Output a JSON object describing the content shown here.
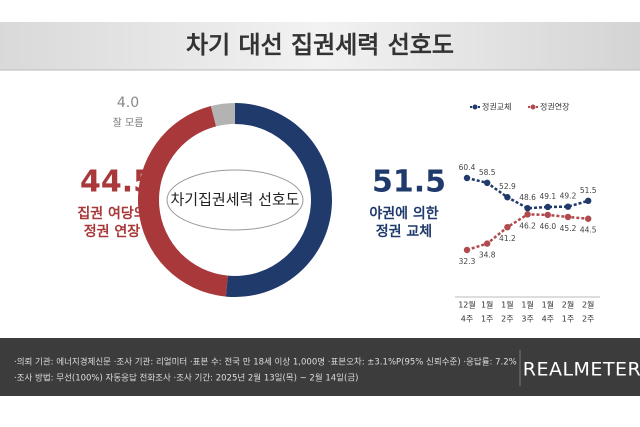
{
  "title": "차기 대선 집권세력 선호도",
  "chart_data": [
    {
      "type": "pie",
      "center_label": "차기집권세력 선호도",
      "labels": [
        [
          "야권에 의한",
          "정권 교체"
        ],
        [
          "집권 여당의",
          "정권 연장"
        ],
        [
          "잘 모름"
        ]
      ],
      "values": [
        51.5,
        44.5,
        4.0
      ],
      "value_labels": [
        "51.5",
        "44.5",
        "4.0"
      ],
      "colors": [
        "#1f3a6b",
        "#a8383a",
        "#b3b3b3"
      ]
    },
    {
      "type": "line",
      "categories": [
        [
          "12월",
          "4주"
        ],
        [
          "1월",
          "1주"
        ],
        [
          "1월",
          "2주"
        ],
        [
          "1월",
          "3주"
        ],
        [
          "1월",
          "4주"
        ],
        [
          "2월",
          "1주"
        ],
        [
          "2월",
          "2주"
        ]
      ],
      "series": [
        {
          "name": "정권교체",
          "color": "#1f3a6b",
          "values": [
            60.4,
            58.5,
            52.9,
            48.6,
            49.1,
            49.2,
            51.5
          ]
        },
        {
          "name": "정권연장",
          "color": "#b04a4e",
          "values": [
            32.3,
            34.8,
            41.2,
            46.2,
            46.0,
            45.2,
            44.5
          ],
          "value_labels": [
            "32.3",
            "34.8",
            "41.2",
            "46.2",
            "46.0",
            "45.2",
            "44.5"
          ]
        }
      ]
    }
  ],
  "footer": {
    "lines": [
      "·의뢰 기관: 에너지경제신문 ·조사 기관: 리얼미터 ·표본 수: 전국 만 18세 이상 1,000명 ·표본오차: ±3.1%P(95% 신뢰수준) ·응답률: 7.2%",
      "·조사 방법: 무선(100%) 자동응답 전화조사 ·조사 기간: 2025년 2월 13일(목) ~ 2월 14일(금)"
    ],
    "logo": "REALMETER"
  }
}
